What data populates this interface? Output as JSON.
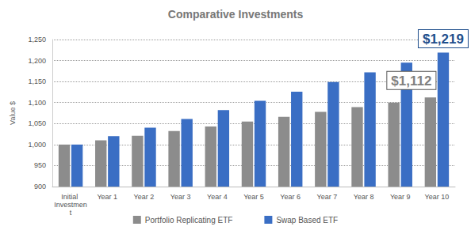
{
  "chart_data": {
    "type": "bar",
    "title": "Comparative Investments",
    "y_label": "Value $",
    "categories": [
      "Initial Investment",
      "Year 1",
      "Year 2",
      "Year 3",
      "Year 4",
      "Year 5",
      "Year 6",
      "Year 7",
      "Year 8",
      "Year 9",
      "Year 10"
    ],
    "series": [
      {
        "name": "Portfolio Replicating ETF",
        "color": "#8c8c8c",
        "values": [
          1000,
          1010,
          1021,
          1032,
          1043,
          1055,
          1066,
          1078,
          1089,
          1100,
          1112
        ]
      },
      {
        "name": "Swap Based ETF",
        "color": "#3a6ec4",
        "values": [
          1000,
          1020,
          1040,
          1061,
          1082,
          1104,
          1126,
          1149,
          1172,
          1195,
          1219
        ]
      }
    ],
    "ylim": [
      900,
      1250
    ],
    "yticks": [
      900,
      950,
      {
        "value": 1000,
        "label": "1,000"
      },
      {
        "value": 1050,
        "label": "1,050"
      },
      {
        "value": 1100,
        "label": "1,100"
      },
      {
        "value": 1150,
        "label": "1,150"
      },
      {
        "value": 1200,
        "label": "1,200"
      },
      {
        "value": 1250,
        "label": "1,250"
      }
    ],
    "grid": true,
    "legend": "bottom",
    "annotations": [
      {
        "text": "$1,219",
        "series": "Swap Based ETF",
        "category": "Year 10",
        "value": 1219
      },
      {
        "text": "$1,112",
        "series": "Portfolio Replicating ETF",
        "category": "Year 10",
        "value": 1112
      }
    ]
  }
}
